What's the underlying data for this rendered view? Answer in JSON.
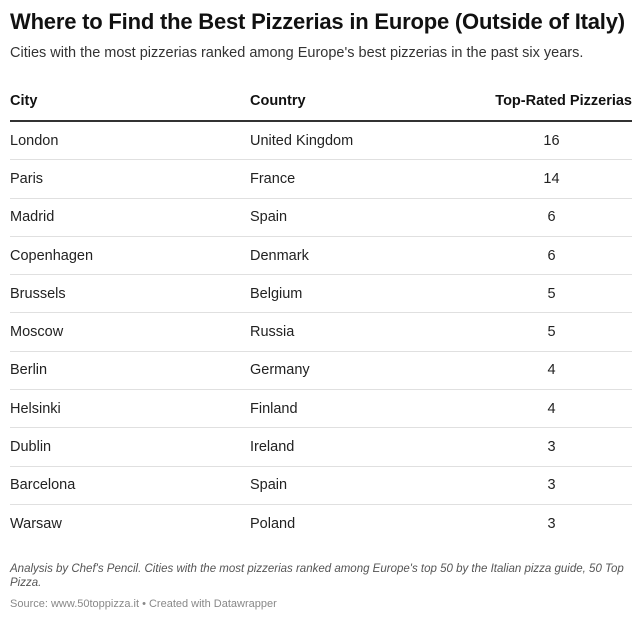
{
  "chart_data": {
    "type": "table",
    "title": "Where to Find the Best Pizzerias in Europe (Outside of Italy)",
    "subtitle": "Cities with the most pizzerias ranked among Europe's best pizzerias in the past six years.",
    "columns": [
      "City",
      "Country",
      "Top-Rated Pizzerias"
    ],
    "rows": [
      [
        "London",
        "United Kingdom",
        "16"
      ],
      [
        "Paris",
        "France",
        "14"
      ],
      [
        "Madrid",
        "Spain",
        "6"
      ],
      [
        "Copenhagen",
        "Denmark",
        "6"
      ],
      [
        "Brussels",
        "Belgium",
        "5"
      ],
      [
        "Moscow",
        "Russia",
        "5"
      ],
      [
        "Berlin",
        "Germany",
        "4"
      ],
      [
        "Helsinki",
        "Finland",
        "4"
      ],
      [
        "Dublin",
        "Ireland",
        "3"
      ],
      [
        "Barcelona",
        "Spain",
        "3"
      ],
      [
        "Warsaw",
        "Poland",
        "3"
      ]
    ],
    "notes": "Analysis by Chef's Pencil. Cities with the most pizzerias ranked among Europe's top 50 by the Italian pizza guide, 50 Top Pizza.",
    "source": "Source: www.50toppizza.it • Created with Datawrapper"
  }
}
